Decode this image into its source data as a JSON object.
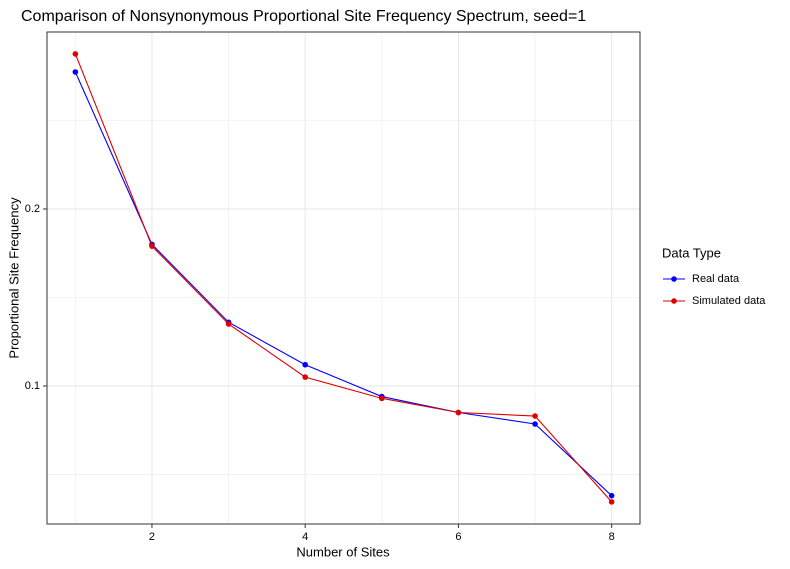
{
  "chart_data": {
    "type": "line",
    "title": "Comparison of Nonsynonymous Proportional Site Frequency Spectrum, seed=1",
    "x_label": "Number of Sites",
    "y_label": "Proportional Site Frequency",
    "x": [
      1,
      2,
      3,
      4,
      5,
      6,
      7,
      8
    ],
    "series": [
      {
        "name": "Real data",
        "color": "#0000ff",
        "values": [
          0.2774,
          0.18,
          0.136,
          0.112,
          0.094,
          0.085,
          0.0785,
          0.038
        ]
      },
      {
        "name": "Simulated data",
        "color": "#e00000",
        "values": [
          0.2876,
          0.179,
          0.135,
          0.105,
          0.093,
          0.085,
          0.083,
          0.0345
        ]
      }
    ],
    "xlim": [
      0.63,
      8.37
    ],
    "ylim": [
      0.022,
      0.3
    ],
    "xticks": [
      2,
      4,
      6,
      8
    ],
    "yticks": [
      0.1,
      0.2
    ],
    "xminor": [
      1,
      3,
      5,
      7
    ],
    "yminor": [
      0.05,
      0.15,
      0.25
    ],
    "grid": true,
    "legend_title": "Data Type",
    "legend_position": "right"
  }
}
